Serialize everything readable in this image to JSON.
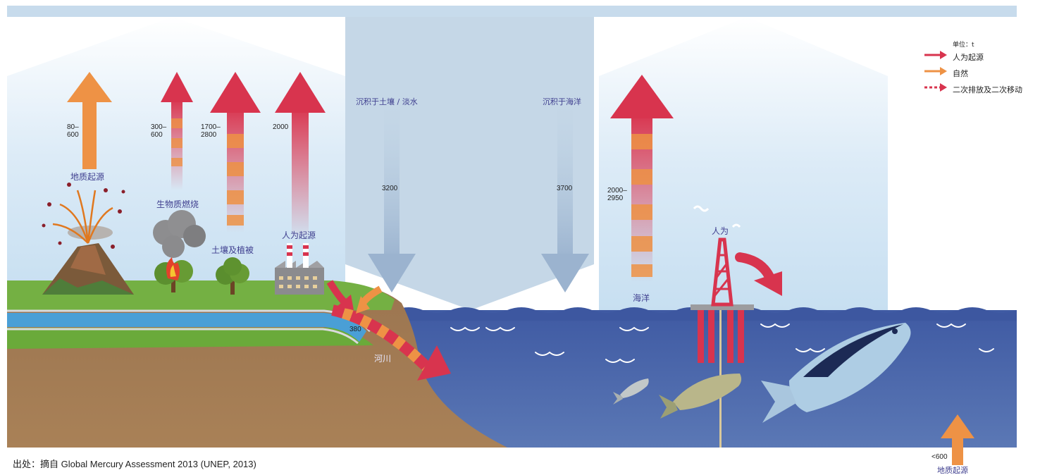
{
  "legend": {
    "unit": "单位：t",
    "items": [
      {
        "label": "人为起源",
        "color": "#d8344e"
      },
      {
        "label": "自然",
        "color": "#ee9245"
      },
      {
        "label": "二次排放及二次移动",
        "color": "#d8344e"
      }
    ]
  },
  "emissions": {
    "geogenic": {
      "label": "地质起源",
      "value": "80–\n600"
    },
    "biomass": {
      "label": "生物质燃烧",
      "value": "300–\n600"
    },
    "soil": {
      "label": "土壤及植被",
      "value": "1700–\n2800"
    },
    "anthropogenic": {
      "label": "人为起源",
      "value": "2000"
    },
    "ocean": {
      "label": "海洋",
      "value": "2000–\n2950"
    }
  },
  "deposition": {
    "land": {
      "label": "沉积于土壤 / 淡水",
      "value": "3200"
    },
    "ocean": {
      "label": "沉积于海洋",
      "value": "3700"
    }
  },
  "river": {
    "label": "河川",
    "value": "380"
  },
  "human_ocean": {
    "label": "人为"
  },
  "seafloor": {
    "label": "地质起源",
    "value": "<600"
  },
  "source": "出处：摘自 Global Mercury Assessment 2013 (UNEP, 2013)",
  "colors": {
    "anthropogenic": "#d8344e",
    "natural": "#ee9245",
    "sky": "#cfe3f2",
    "deposition": "#c3d6e6",
    "ocean": "#4f66a5",
    "land": "#a27a52",
    "grass": "#6aaa3a",
    "river": "#4a9fd6"
  }
}
